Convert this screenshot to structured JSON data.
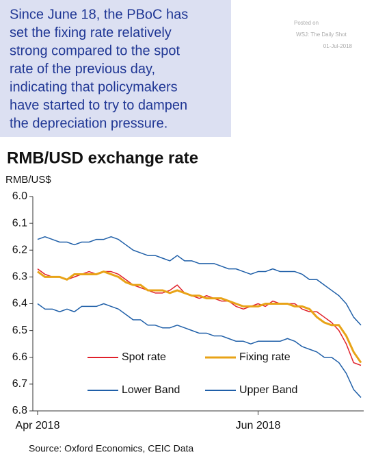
{
  "chart_data": {
    "type": "line",
    "annotation": [
      "Since June 18, the PBoC has",
      "set the fixing rate relatively",
      "strong compared to the spot",
      "rate of the previous day,",
      "indicating that policymakers",
      "have started to try to dampen",
      "the depreciation pressure."
    ],
    "posted": [
      "Posted on",
      "WSJ: The Daily Shot",
      "01-Jul-2018"
    ],
    "title": "RMB/USD exchange rate",
    "ylabel": "RMB/US$",
    "source": "Source: Oxford Economics, CEIC Data",
    "categories": [
      "Apr 2018",
      null,
      null,
      null,
      null,
      null,
      null,
      null,
      null,
      null,
      null,
      null,
      null,
      null,
      null,
      null,
      null,
      null,
      null,
      null,
      null,
      null,
      null,
      null,
      null,
      null,
      null,
      null,
      null,
      null,
      "Jun 2018",
      null,
      null,
      null,
      null,
      null,
      null,
      null,
      null,
      null,
      null,
      null,
      null,
      null,
      null
    ],
    "ylim": [
      6.0,
      6.8
    ],
    "yinverted": true,
    "yticks": [
      {
        "value": 6,
        "label": "6.0"
      },
      6.1,
      6.2,
      6.3,
      6.4,
      6.5,
      6.6,
      6.7,
      6.8
    ],
    "series": [
      {
        "name": "Spot rate",
        "color": "#e0202a",
        "values": [
          6.27,
          6.29,
          6.3,
          6.3,
          6.31,
          6.3,
          6.29,
          6.28,
          6.29,
          6.28,
          6.28,
          6.29,
          6.31,
          6.33,
          6.34,
          6.35,
          6.36,
          6.36,
          6.35,
          6.33,
          6.36,
          6.37,
          6.38,
          6.37,
          6.38,
          6.39,
          6.39,
          6.41,
          6.42,
          6.41,
          6.4,
          6.41,
          6.39,
          6.4,
          6.4,
          6.4,
          6.42,
          6.43,
          6.43,
          6.45,
          6.47,
          6.5,
          6.55,
          6.62,
          6.63
        ]
      },
      {
        "name": "Fixing rate",
        "color": "#e8a317",
        "values": [
          6.28,
          6.3,
          6.3,
          6.3,
          6.31,
          6.29,
          6.29,
          6.29,
          6.29,
          6.28,
          6.29,
          6.3,
          6.32,
          6.33,
          6.33,
          6.35,
          6.35,
          6.35,
          6.36,
          6.35,
          6.36,
          6.37,
          6.37,
          6.38,
          6.38,
          6.38,
          6.39,
          6.4,
          6.41,
          6.41,
          6.41,
          6.4,
          6.4,
          6.4,
          6.4,
          6.41,
          6.41,
          6.42,
          6.45,
          6.47,
          6.48,
          6.48,
          6.52,
          6.58,
          6.62
        ]
      },
      {
        "name": "Lower Band",
        "color": "#1f5fa8",
        "values": [
          6.4,
          6.42,
          6.42,
          6.43,
          6.42,
          6.43,
          6.41,
          6.41,
          6.41,
          6.4,
          6.41,
          6.42,
          6.44,
          6.46,
          6.46,
          6.48,
          6.48,
          6.49,
          6.49,
          6.48,
          6.49,
          6.5,
          6.51,
          6.51,
          6.52,
          6.52,
          6.53,
          6.54,
          6.54,
          6.55,
          6.54,
          6.54,
          6.54,
          6.54,
          6.53,
          6.54,
          6.56,
          6.57,
          6.58,
          6.6,
          6.6,
          6.62,
          6.66,
          6.72,
          6.75
        ]
      },
      {
        "name": "Upper Band",
        "color": "#1f5fa8",
        "values": [
          6.16,
          6.15,
          6.16,
          6.17,
          6.17,
          6.18,
          6.17,
          6.17,
          6.16,
          6.16,
          6.15,
          6.16,
          6.18,
          6.2,
          6.21,
          6.22,
          6.22,
          6.23,
          6.24,
          6.22,
          6.24,
          6.24,
          6.25,
          6.25,
          6.25,
          6.26,
          6.27,
          6.27,
          6.28,
          6.29,
          6.28,
          6.28,
          6.27,
          6.28,
          6.28,
          6.28,
          6.29,
          6.31,
          6.31,
          6.33,
          6.35,
          6.37,
          6.4,
          6.45,
          6.48
        ]
      }
    ]
  }
}
